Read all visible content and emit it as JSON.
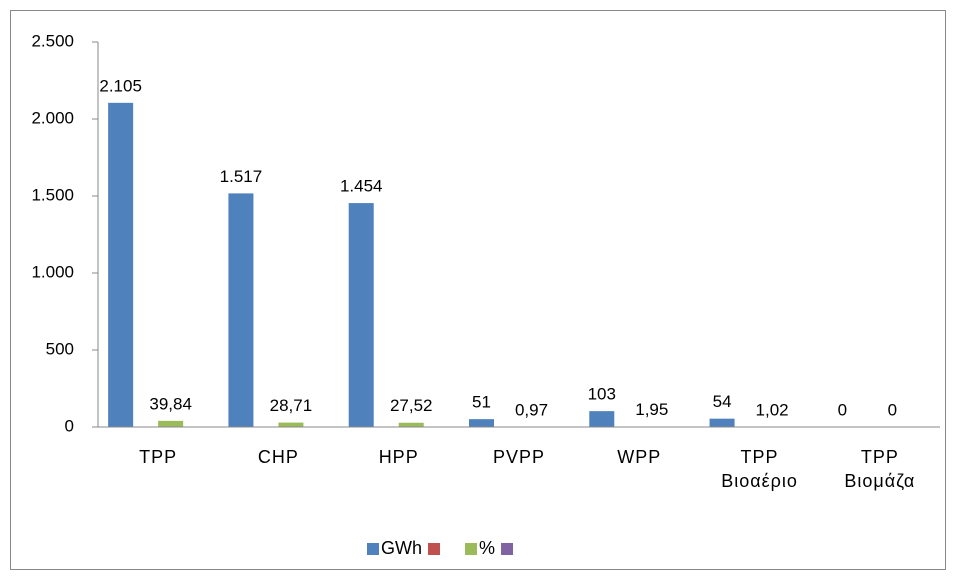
{
  "chart_data": {
    "type": "bar",
    "categories": [
      "TPP",
      "CHP",
      "HPP",
      "PVPP",
      "WPP",
      "TPP\nΒιοαέριο",
      "TPP\nΒιομάζα"
    ],
    "series": [
      {
        "name": "GWh",
        "color": "#4f81bd",
        "values": [
          2105,
          1517,
          1454,
          51,
          103,
          54,
          0
        ],
        "value_labels": [
          "2.105",
          "1.517",
          "1.454",
          "51",
          "103",
          "54",
          "0"
        ]
      },
      {
        "name": null,
        "color": "#c0504d",
        "values": [
          null,
          null,
          null,
          null,
          null,
          null,
          null
        ]
      },
      {
        "name": "%",
        "color": "#9bbb59",
        "values": [
          39.84,
          28.71,
          27.52,
          0.97,
          1.95,
          1.02,
          0
        ],
        "value_labels": [
          "39,84",
          "28,71",
          "27,52",
          "0,97",
          "1,95",
          "1,02",
          "0"
        ]
      },
      {
        "name": null,
        "color": "#8064a2",
        "values": [
          null,
          null,
          null,
          null,
          null,
          null,
          null
        ]
      }
    ],
    "ylim": [
      0,
      2500
    ],
    "yticks": [
      0,
      500,
      {
        "value": 1000,
        "label": "1.000"
      },
      {
        "value": 1500,
        "label": "1.500"
      },
      {
        "value": 2000,
        "label": "2.000"
      },
      {
        "value": 2500,
        "label": "2.500"
      }
    ],
    "grid": false,
    "legend": "bottom"
  }
}
